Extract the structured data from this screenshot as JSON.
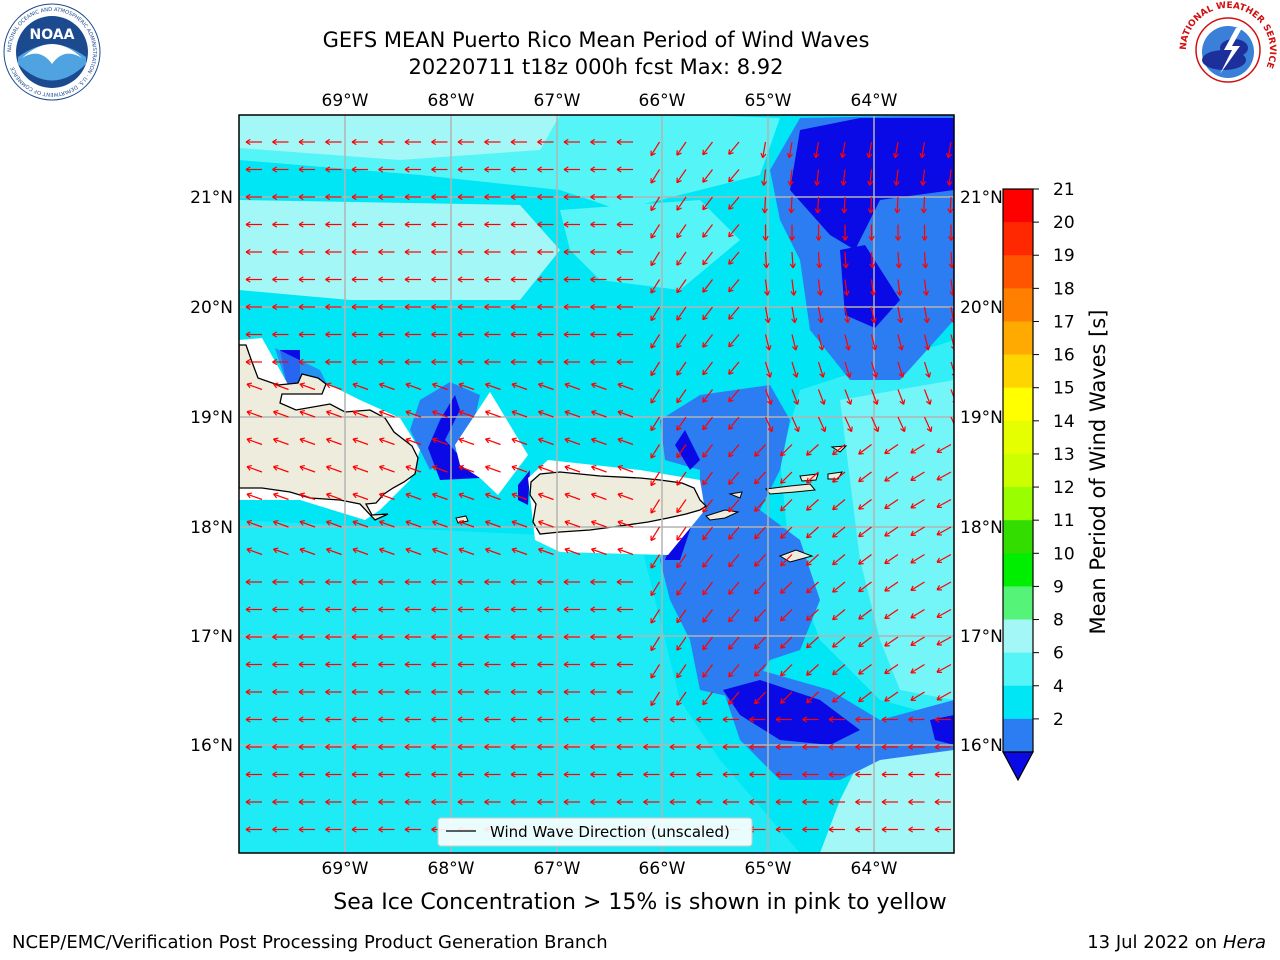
{
  "title": {
    "line1": "GEFS MEAN Puerto Rico Mean Period of Wind Waves",
    "line2": "20220711 t18z 000h fcst   Max: 8.92"
  },
  "map": {
    "lon_labels": [
      "69°W",
      "68°W",
      "67°W",
      "66°W",
      "65°W",
      "64°W"
    ],
    "lat_labels": [
      "21°N",
      "20°N",
      "19°N",
      "18°N",
      "17°N",
      "16°N"
    ],
    "legend_label": "Wind Wave Direction (unscaled)",
    "colors": {
      "land": "#eeecdc",
      "c2_4": "#2d7df2",
      "c4_6": "#00e6f4",
      "c6_8": "#55f4f7",
      "c8_9": "#a3f7f7",
      "below2": "#0a0ae6",
      "arrow": "#ff0000",
      "grid": "#b4b4b4"
    }
  },
  "colorbar": {
    "label": "Mean Period of Wind Waves [s]",
    "ticks": [
      "21",
      "20",
      "19",
      "18",
      "17",
      "16",
      "15",
      "14",
      "13",
      "12",
      "11",
      "10",
      "9",
      "8",
      "6",
      "4",
      "2"
    ],
    "colors": [
      "#ff0000",
      "#ff2800",
      "#ff5500",
      "#ff8000",
      "#ffaa00",
      "#ffd500",
      "#ffff00",
      "#e6ff00",
      "#ccff00",
      "#99ff00",
      "#33dd00",
      "#00ee00",
      "#55f478",
      "#a3f7f7",
      "#55f4f7",
      "#00e6f4",
      "#2d7df2",
      "#0a0ae6"
    ]
  },
  "logos": {
    "noaa_text": "NOAA",
    "noaa_ring": "NATIONAL OCEANIC AND ATMOSPHERIC ADMINISTRATION · U.S. DEPARTMENT OF COMMERCE",
    "nws_ring": "NATIONAL WEATHER SERVICE"
  },
  "footer": {
    "ice_note": "Sea Ice Concentration > 15% is shown in pink to yellow",
    "branch": "NCEP/EMC/Verification Post Processing Product Generation Branch",
    "date": "13 Jul 2022 on",
    "host": "Hera"
  }
}
